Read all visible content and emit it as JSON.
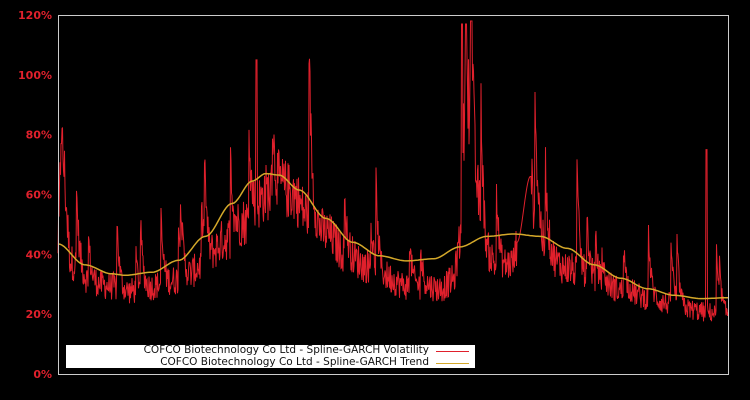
{
  "chart_data": {
    "type": "line",
    "title": "",
    "xlabel": "",
    "ylabel": "",
    "ylim": [
      0,
      120
    ],
    "y_ticks": [
      "0%",
      "20%",
      "40%",
      "60%",
      "80%",
      "100%",
      "120%"
    ],
    "y_tick_values": [
      0,
      20,
      40,
      60,
      80,
      100,
      120
    ],
    "x_ticks": [],
    "grid": false,
    "background": "#000000",
    "legend_position": "bottom-left inside plot",
    "series": [
      {
        "name": "COFCO Biotechnology Co Ltd - Spline-GARCH Volatility",
        "color": "#e0202c",
        "description": "Noisy daily volatility; approximate keypoints (x fraction of plot width, value %)",
        "keypoints": [
          [
            0.0,
            44
          ],
          [
            0.005,
            77
          ],
          [
            0.02,
            38
          ],
          [
            0.05,
            31
          ],
          [
            0.08,
            30
          ],
          [
            0.1,
            28
          ],
          [
            0.13,
            29
          ],
          [
            0.16,
            31
          ],
          [
            0.19,
            33
          ],
          [
            0.22,
            38
          ],
          [
            0.25,
            46
          ],
          [
            0.28,
            52
          ],
          [
            0.3,
            58
          ],
          [
            0.31,
            62
          ],
          [
            0.33,
            64
          ],
          [
            0.35,
            62
          ],
          [
            0.37,
            55
          ],
          [
            0.4,
            48
          ],
          [
            0.43,
            41
          ],
          [
            0.46,
            37
          ],
          [
            0.49,
            33
          ],
          [
            0.52,
            30
          ],
          [
            0.55,
            30
          ],
          [
            0.57,
            29
          ],
          [
            0.59,
            32
          ],
          [
            0.6,
            45
          ],
          [
            0.605,
            80
          ],
          [
            0.61,
            105
          ],
          [
            0.615,
            90
          ],
          [
            0.625,
            60
          ],
          [
            0.64,
            40
          ],
          [
            0.66,
            36
          ],
          [
            0.68,
            38
          ],
          [
            0.685,
            44
          ],
          [
            0.705,
            66
          ],
          [
            0.715,
            50
          ],
          [
            0.73,
            40
          ],
          [
            0.76,
            36
          ],
          [
            0.79,
            33
          ],
          [
            0.82,
            30
          ],
          [
            0.85,
            28
          ],
          [
            0.88,
            26
          ],
          [
            0.91,
            24
          ],
          [
            0.94,
            22
          ],
          [
            0.97,
            21
          ],
          [
            1.0,
            20
          ]
        ],
        "notable_peaks": [
          {
            "x": 0.005,
            "value": 77
          },
          {
            "x": 0.296,
            "value": 105
          },
          {
            "x": 0.603,
            "value": 117
          },
          {
            "x": 0.609,
            "value": 117
          },
          {
            "x": 0.705,
            "value": 66
          },
          {
            "x": 0.968,
            "value": 75
          }
        ]
      },
      {
        "name": "COFCO Biotechnology Co Ltd - Spline-GARCH Trend",
        "color": "#d4a82a",
        "keypoints": [
          [
            0.0,
            43.5
          ],
          [
            0.04,
            36.5
          ],
          [
            0.08,
            33.5
          ],
          [
            0.1,
            33.0
          ],
          [
            0.14,
            34.0
          ],
          [
            0.18,
            38.0
          ],
          [
            0.22,
            46.0
          ],
          [
            0.26,
            57.0
          ],
          [
            0.29,
            64.5
          ],
          [
            0.31,
            67.0
          ],
          [
            0.33,
            66.5
          ],
          [
            0.36,
            61.5
          ],
          [
            0.4,
            52.0
          ],
          [
            0.44,
            44.0
          ],
          [
            0.48,
            39.5
          ],
          [
            0.52,
            37.8
          ],
          [
            0.56,
            38.5
          ],
          [
            0.6,
            42.5
          ],
          [
            0.64,
            46.0
          ],
          [
            0.68,
            46.8
          ],
          [
            0.72,
            46.0
          ],
          [
            0.76,
            42.0
          ],
          [
            0.8,
            36.5
          ],
          [
            0.84,
            32.0
          ],
          [
            0.88,
            28.5
          ],
          [
            0.92,
            26.3
          ],
          [
            0.96,
            25.2
          ],
          [
            1.0,
            25.5
          ]
        ]
      }
    ]
  },
  "legend": {
    "items": [
      {
        "label": "COFCO Biotechnology Co Ltd - Spline-GARCH Volatility",
        "color": "#e0202c"
      },
      {
        "label": "COFCO Biotechnology Co Ltd - Spline-GARCH Trend",
        "color": "#d4a82a"
      }
    ]
  }
}
